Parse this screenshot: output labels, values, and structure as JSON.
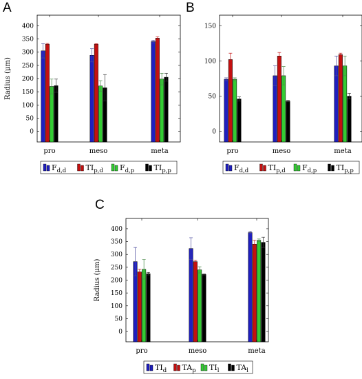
{
  "figure": {
    "panel_letters": [
      "A",
      "B",
      "C"
    ]
  },
  "chart_data": [
    {
      "panel": "A",
      "type": "bar",
      "ylabel": "Radius (μm)",
      "ylim": [
        -40,
        440
      ],
      "yticks": [
        0,
        50,
        100,
        150,
        200,
        250,
        300,
        350,
        400
      ],
      "categories": [
        "pro",
        "meso",
        "meta"
      ],
      "legend_placement": "bottom",
      "grid": false,
      "series": [
        {
          "name": "F",
          "sub": "d,d",
          "color": "#1f1fbf",
          "values": [
            305,
            288,
            340
          ],
          "errors": [
            27,
            25,
            5
          ]
        },
        {
          "name": "TI",
          "sub": "p,d",
          "color": "#c41010",
          "values": [
            330,
            330,
            353
          ],
          "errors": [
            3,
            2,
            5
          ]
        },
        {
          "name": "F",
          "sub": "d,p",
          "color": "#33cc33",
          "values": [
            170,
            172,
            198
          ],
          "errors": [
            28,
            20,
            22
          ]
        },
        {
          "name": "TI",
          "sub": "p,p",
          "color": "#000000",
          "values": [
            173,
            165,
            205
          ],
          "errors": [
            25,
            50,
            15
          ]
        }
      ]
    },
    {
      "panel": "B",
      "type": "bar",
      "ylabel": "",
      "ylim": [
        -15,
        165
      ],
      "yticks": [
        0,
        50,
        100,
        150
      ],
      "categories": [
        "pro",
        "meso",
        "meta"
      ],
      "legend_placement": "bottom",
      "grid": false,
      "series": [
        {
          "name": "F",
          "sub": "d,d",
          "color": "#1f1fbf",
          "values": [
            74,
            79,
            93
          ],
          "errors": [
            2,
            14,
            14
          ]
        },
        {
          "name": "TI",
          "sub": "p,d",
          "color": "#c41010",
          "values": [
            102,
            107,
            109
          ],
          "errors": [
            9,
            5,
            2
          ]
        },
        {
          "name": "F",
          "sub": "d,p",
          "color": "#33cc33",
          "values": [
            74,
            79,
            93
          ],
          "errors": [
            2,
            13,
            14
          ]
        },
        {
          "name": "TI",
          "sub": "p,p",
          "color": "#000000",
          "values": [
            46,
            43,
            50
          ],
          "errors": [
            3,
            1,
            4
          ]
        }
      ]
    },
    {
      "panel": "C",
      "type": "bar",
      "ylabel": "Radius (μm)",
      "ylim": [
        -40,
        440
      ],
      "yticks": [
        0,
        50,
        100,
        150,
        200,
        250,
        300,
        350,
        400
      ],
      "categories": [
        "pro",
        "meso",
        "meta"
      ],
      "legend_placement": "bottom",
      "grid": false,
      "series": [
        {
          "name": "TI",
          "sub": "d",
          "color": "#1f1fbf",
          "values": [
            272,
            323,
            385
          ],
          "errors": [
            55,
            42,
            5
          ]
        },
        {
          "name": "TA",
          "sub": "p",
          "color": "#c41010",
          "values": [
            232,
            272,
            340
          ],
          "errors": [
            10,
            5,
            15
          ]
        },
        {
          "name": "TI",
          "sub": "l",
          "color": "#33cc33",
          "values": [
            242,
            240,
            355
          ],
          "errors": [
            38,
            12,
            5
          ]
        },
        {
          "name": "TA",
          "sub": "l",
          "color": "#000000",
          "values": [
            225,
            222,
            347
          ],
          "errors": [
            5,
            2,
            20
          ]
        }
      ]
    }
  ]
}
